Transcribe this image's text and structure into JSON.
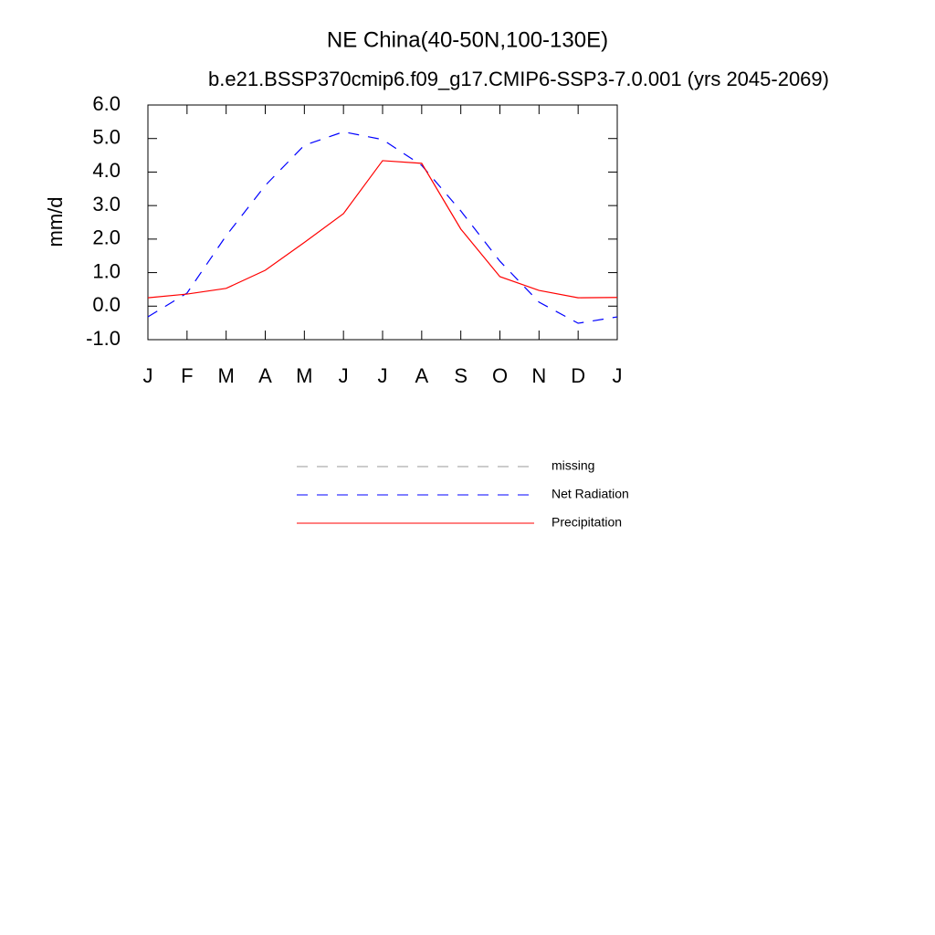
{
  "chart_data": {
    "type": "line",
    "title": "NE China(40-50N,100-130E)",
    "subtitle": "b.e21.BSSP370cmip6.f09_g17.CMIP6-SSP3-7.0.001 (yrs 2045-2069)",
    "ylabel": "mm/d",
    "categories": [
      "J",
      "F",
      "M",
      "A",
      "M",
      "J",
      "J",
      "A",
      "S",
      "O",
      "N",
      "D",
      "J"
    ],
    "ylim": [
      -1,
      6
    ],
    "yticks": [
      {
        "value": -1,
        "label": "-1.0"
      },
      {
        "value": 0,
        "label": "0.0"
      },
      {
        "value": 1,
        "label": "1.0"
      },
      {
        "value": 2,
        "label": "2.0"
      },
      {
        "value": 3,
        "label": "3.0"
      },
      {
        "value": 4,
        "label": "4.0"
      },
      {
        "value": 5,
        "label": "5.0"
      },
      {
        "value": 6,
        "label": "6.0"
      }
    ],
    "series": [
      {
        "name": "missing",
        "color": "#999999",
        "dashed": true,
        "values": [
          null,
          null,
          null,
          null,
          null,
          null,
          null,
          null,
          null,
          null,
          null,
          null,
          null
        ]
      },
      {
        "name": "Net Radiation",
        "color": "#0000ff",
        "dashed": true,
        "values": [
          -0.32,
          0.39,
          2.1,
          3.6,
          4.8,
          5.2,
          4.97,
          4.2,
          2.84,
          1.34,
          0.12,
          -0.51,
          -0.32
        ]
      },
      {
        "name": "Precipitation",
        "color": "#ff0000",
        "dashed": false,
        "values": [
          0.25,
          0.36,
          0.53,
          1.07,
          1.9,
          2.76,
          4.34,
          4.26,
          2.3,
          0.88,
          0.47,
          0.25,
          0.26
        ]
      }
    ],
    "legend": "bottom"
  }
}
